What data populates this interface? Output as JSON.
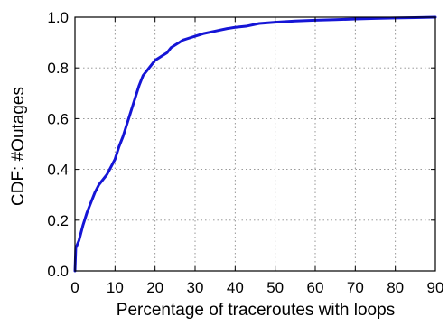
{
  "chart_data": {
    "type": "line",
    "title": "",
    "xlabel": "Percentage of traceroutes with loops",
    "ylabel": "CDF: #Outages",
    "xlim": [
      0,
      90
    ],
    "ylim": [
      0.0,
      1.0
    ],
    "x_ticks": [
      0,
      10,
      20,
      30,
      40,
      50,
      60,
      70,
      80,
      90
    ],
    "y_ticks": [
      0.0,
      0.2,
      0.4,
      0.6,
      0.8,
      1.0
    ],
    "x_tick_labels": [
      "0",
      "10",
      "20",
      "30",
      "40",
      "50",
      "60",
      "70",
      "80",
      "90"
    ],
    "y_tick_labels": [
      "0.0",
      "0.2",
      "0.4",
      "0.6",
      "0.8",
      "1.0"
    ],
    "grid": true,
    "grid_style": "dotted",
    "legend": "none",
    "colors": {
      "line": "#1515d6",
      "grid": "#8c8c8c",
      "axis": "#000000"
    },
    "series": [
      {
        "x": [
          0,
          0.2,
          1,
          2,
          3,
          4,
          5,
          6,
          7,
          8,
          9,
          10,
          11,
          12,
          13,
          14,
          15,
          16,
          17,
          18,
          19,
          20,
          21,
          22,
          23,
          24,
          25,
          26,
          27,
          28,
          30,
          32,
          35,
          38,
          40,
          43,
          46,
          50,
          55,
          60,
          65,
          70,
          75,
          80,
          85,
          90
        ],
        "y": [
          0.0,
          0.09,
          0.12,
          0.18,
          0.23,
          0.27,
          0.31,
          0.34,
          0.36,
          0.38,
          0.41,
          0.44,
          0.49,
          0.53,
          0.58,
          0.63,
          0.68,
          0.73,
          0.77,
          0.79,
          0.81,
          0.83,
          0.84,
          0.85,
          0.86,
          0.88,
          0.89,
          0.9,
          0.91,
          0.915,
          0.925,
          0.935,
          0.945,
          0.955,
          0.96,
          0.965,
          0.975,
          0.98,
          0.985,
          0.988,
          0.99,
          0.993,
          0.995,
          0.997,
          0.998,
          1.0
        ]
      }
    ]
  }
}
